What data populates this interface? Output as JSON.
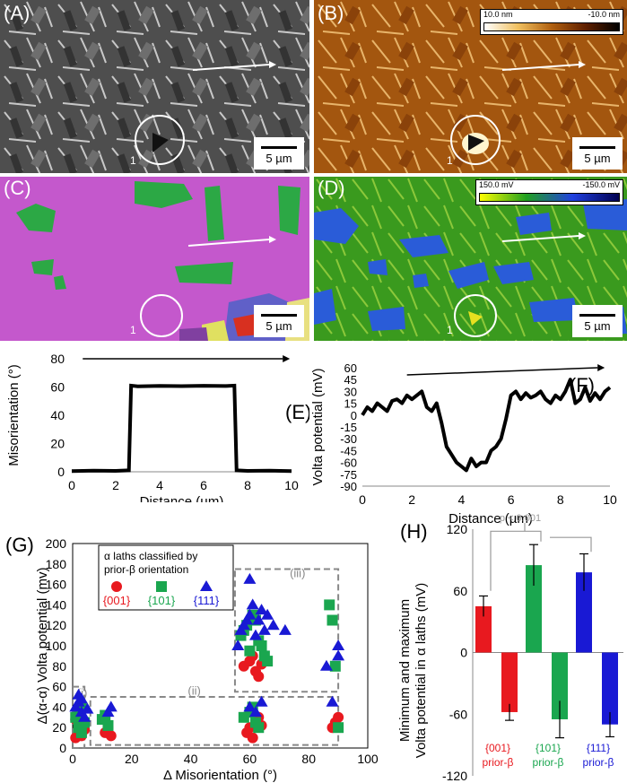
{
  "panels": {
    "A": {
      "label": "(A)"
    },
    "B": {
      "label": "(B)",
      "colorbar": {
        "left": "10.0 nm",
        "right": "-10.0 nm"
      }
    },
    "C": {
      "label": "(C)"
    },
    "D": {
      "label": "(D)",
      "colorbar": {
        "left": "150.0 mV",
        "right": "-150.0 mV"
      }
    },
    "scale_label": "5 µm",
    "marker_label": "1"
  },
  "panel_e": {
    "label": "(E)",
    "xlabel": "Distance (µm)",
    "ylabel": "Misorientation (°)",
    "xticks": [
      "0",
      "2",
      "4",
      "6",
      "8",
      "10"
    ],
    "yticks": [
      "0",
      "20",
      "40",
      "60",
      "80"
    ],
    "chart_data": {
      "type": "line",
      "xlim": [
        0,
        10
      ],
      "ylim": [
        0,
        80
      ],
      "x": [
        0,
        1,
        2,
        2.6,
        2.7,
        3,
        4,
        5,
        6,
        7,
        7.4,
        7.5,
        8,
        9,
        10
      ],
      "y": [
        0.5,
        0.8,
        0.6,
        1,
        61,
        60.5,
        60.8,
        60.6,
        60.9,
        60.7,
        61,
        1,
        0.6,
        0.8,
        0.5
      ]
    }
  },
  "panel_f": {
    "label": "(F)",
    "xlabel": "Distance (µm)",
    "ylabel": "Volta potential (mV)",
    "xticks": [
      "0",
      "2",
      "4",
      "6",
      "8",
      "10"
    ],
    "yticks": [
      "-90",
      "-75",
      "-60",
      "-45",
      "-30",
      "-15",
      "0",
      "15",
      "30",
      "45",
      "60"
    ],
    "chart_data": {
      "type": "line",
      "xlim": [
        0,
        10
      ],
      "ylim": [
        -90,
        60
      ],
      "x": [
        0,
        0.2,
        0.4,
        0.6,
        0.8,
        1.0,
        1.2,
        1.4,
        1.6,
        1.8,
        2.0,
        2.2,
        2.4,
        2.6,
        2.8,
        3.0,
        3.2,
        3.4,
        3.6,
        3.8,
        4.0,
        4.2,
        4.4,
        4.6,
        4.8,
        5.0,
        5.2,
        5.4,
        5.6,
        5.8,
        6.0,
        6.2,
        6.4,
        6.6,
        6.8,
        7.0,
        7.2,
        7.4,
        7.6,
        7.8,
        8.0,
        8.2,
        8.4,
        8.6,
        8.8,
        9.0,
        9.2,
        9.4,
        9.6,
        9.8,
        10.0
      ],
      "y": [
        0,
        10,
        5,
        15,
        10,
        5,
        18,
        20,
        15,
        25,
        20,
        25,
        30,
        10,
        5,
        15,
        -10,
        -40,
        -50,
        -60,
        -65,
        -70,
        -55,
        -65,
        -60,
        -60,
        -45,
        -40,
        -30,
        -5,
        25,
        30,
        20,
        28,
        22,
        25,
        30,
        20,
        15,
        25,
        20,
        30,
        45,
        15,
        20,
        35,
        18,
        28,
        20,
        30,
        35
      ]
    }
  },
  "panel_g": {
    "label": "(G)",
    "xlabel": "Δ Misorientation (°)",
    "ylabel": "Δ(α-α) Volta potential (mv)",
    "xticks": [
      "0",
      "20",
      "40",
      "60",
      "80",
      "100"
    ],
    "yticks": [
      "0",
      "20",
      "40",
      "60",
      "80",
      "100",
      "120",
      "140",
      "160",
      "180",
      "200"
    ],
    "legend_title": "α laths classified by prior-β orientation",
    "legend_title_lines": [
      "α laths classified by",
      "prior-β orientation"
    ],
    "legend": [
      {
        "name": "{001}",
        "color": "#e8191f"
      },
      {
        "name": "{101}",
        "color": "#1aa64f"
      },
      {
        "name": "{111}",
        "color": "#1919d4"
      }
    ],
    "regions": [
      "(i)",
      "(ii)",
      "(iii)"
    ],
    "chart_data": {
      "type": "scatter",
      "xlim": [
        0,
        100
      ],
      "ylim": [
        0,
        200
      ],
      "series": [
        {
          "name": "{001}",
          "x": [
            1,
            2,
            2,
            3,
            3,
            4,
            1,
            2,
            11,
            12,
            13,
            58,
            60,
            61,
            62,
            63,
            64,
            65,
            60,
            62,
            59,
            61,
            63,
            64,
            89,
            90,
            88
          ],
          "y": [
            10,
            15,
            20,
            25,
            12,
            18,
            28,
            22,
            15,
            20,
            12,
            80,
            85,
            90,
            75,
            70,
            82,
            88,
            20,
            25,
            15,
            10,
            30,
            22,
            25,
            30,
            20
          ]
        },
        {
          "name": "{101}",
          "x": [
            1,
            2,
            3,
            4,
            2,
            3,
            10,
            11,
            12,
            57,
            58,
            59,
            60,
            61,
            62,
            63,
            64,
            65,
            66,
            60,
            61,
            62,
            58,
            63,
            87,
            88,
            89,
            90
          ],
          "y": [
            30,
            35,
            40,
            25,
            20,
            15,
            28,
            32,
            22,
            110,
            115,
            120,
            95,
            130,
            125,
            105,
            100,
            90,
            85,
            35,
            40,
            25,
            30,
            20,
            140,
            125,
            80,
            20
          ]
        },
        {
          "name": "{111}",
          "x": [
            1,
            2,
            2,
            3,
            3,
            4,
            5,
            12,
            13,
            56,
            57,
            58,
            59,
            60,
            60,
            61,
            62,
            63,
            64,
            65,
            66,
            68,
            72,
            60,
            62,
            64,
            86,
            88,
            90,
            90
          ],
          "y": [
            40,
            45,
            52,
            35,
            48,
            30,
            38,
            35,
            40,
            100,
            115,
            120,
            125,
            130,
            165,
            140,
            110,
            125,
            135,
            115,
            130,
            120,
            115,
            40,
            35,
            45,
            80,
            45,
            100,
            90
          ]
        }
      ]
    }
  },
  "panel_h": {
    "label": "(H)",
    "ylabel_lines": [
      "Minimum and maximum",
      "Volta potential in α laths (mV)"
    ],
    "yticks": [
      "-120",
      "-60",
      "0",
      "60",
      "120"
    ],
    "bracket_label": "p < 0.001",
    "groups": [
      {
        "name": "{001}",
        "sub": "prior-β",
        "color": "#e8191f"
      },
      {
        "name": "{101}",
        "sub": "prior-β",
        "color": "#1aa64f"
      },
      {
        "name": "{111}",
        "sub": "prior-β",
        "color": "#1919d4"
      }
    ],
    "chart_data": {
      "type": "bar",
      "ylim": [
        -120,
        120
      ],
      "categories": [
        "{001} prior-β",
        "{101} prior-β",
        "{111} prior-β"
      ],
      "series": [
        {
          "name": "maximum",
          "values": [
            45,
            85,
            78
          ],
          "errors": [
            10,
            20,
            18
          ]
        },
        {
          "name": "minimum",
          "values": [
            -58,
            -65,
            -70
          ],
          "errors": [
            8,
            18,
            12
          ]
        }
      ]
    }
  }
}
